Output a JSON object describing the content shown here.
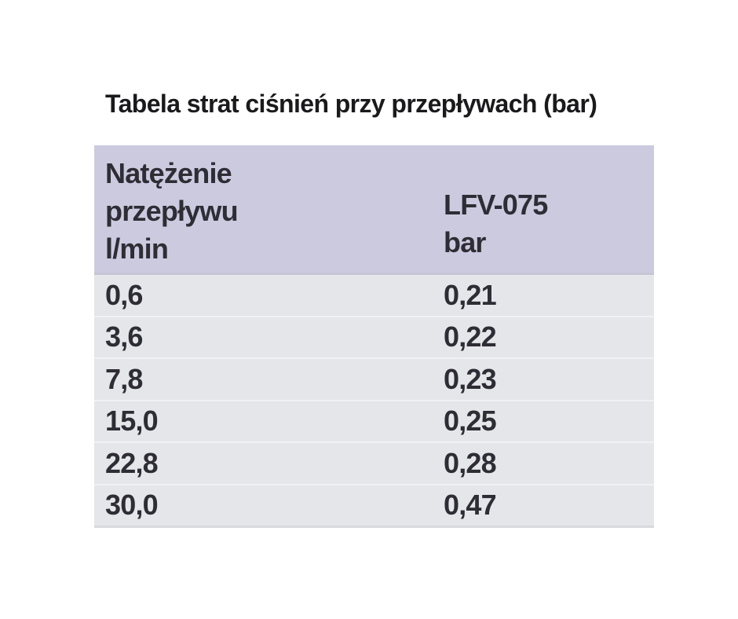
{
  "page": {
    "title": "Tabela strat ciśnień przy przepływach (bar)"
  },
  "table": {
    "header": {
      "col1_lines": [
        "Natężenie",
        "przepływu",
        "l/min"
      ],
      "col2_lines": [
        "LFV-075",
        "bar"
      ]
    },
    "rows": [
      {
        "flow": "0,6",
        "loss": "0,21"
      },
      {
        "flow": "3,6",
        "loss": "0,22"
      },
      {
        "flow": "7,8",
        "loss": "0,23"
      },
      {
        "flow": "15,0",
        "loss": "0,25"
      },
      {
        "flow": "22,8",
        "loss": "0,28"
      },
      {
        "flow": "30,0",
        "loss": "0,47"
      }
    ]
  },
  "chart_data": {
    "type": "table",
    "title": "Tabela strat ciśnień przy przepływach (bar)",
    "columns": [
      "Natężenie przepływu l/min",
      "LFV-075 bar"
    ],
    "x": [
      0.6,
      3.6,
      7.8,
      15.0,
      22.8,
      30.0
    ],
    "series": [
      {
        "name": "LFV-075 (bar)",
        "values": [
          0.21,
          0.22,
          0.23,
          0.25,
          0.28,
          0.47
        ]
      }
    ]
  },
  "colors": {
    "header_bg": "#cccadf",
    "row_bg": "#e5e6e9",
    "row_separator": "#f0f1f4",
    "table_bottom_border": "#d9dade",
    "text": "#2e2d35",
    "title_text": "#1a1a1c",
    "page_bg": "#ffffff"
  }
}
